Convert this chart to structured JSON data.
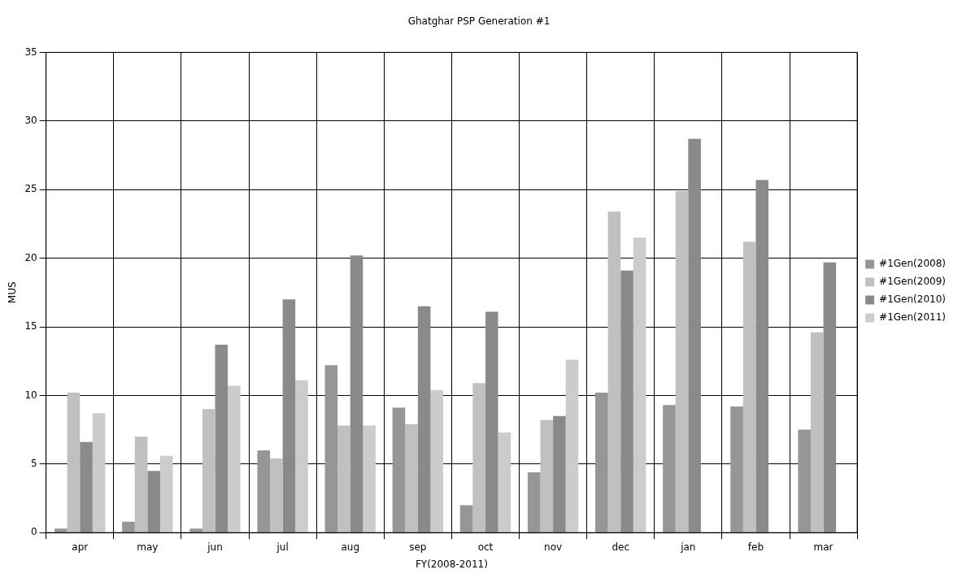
{
  "chart_data": {
    "type": "bar",
    "title": "Ghatghar PSP Generation #1",
    "xlabel": "FY(2008-2011)",
    "ylabel": "MUS",
    "categories": [
      "apr",
      "may",
      "jun",
      "jul",
      "aug",
      "sep",
      "oct",
      "nov",
      "dec",
      "jan",
      "feb",
      "mar"
    ],
    "series": [
      {
        "name": "#1Gen(2008)",
        "color": "#969696",
        "values": [
          0.3,
          0.8,
          0.3,
          6.0,
          12.2,
          9.1,
          2.0,
          4.4,
          10.2,
          9.3,
          9.2,
          7.5
        ]
      },
      {
        "name": "#1Gen(2009)",
        "color": "#c0c0c0",
        "values": [
          10.2,
          7.0,
          9.0,
          5.4,
          7.8,
          7.9,
          10.9,
          8.2,
          23.4,
          24.9,
          21.2,
          14.6
        ]
      },
      {
        "name": "#1Gen(2010)",
        "color": "#8a8a8a",
        "values": [
          6.6,
          4.5,
          13.7,
          17.0,
          20.2,
          16.5,
          16.1,
          8.5,
          19.1,
          28.7,
          25.7,
          19.7
        ]
      },
      {
        "name": "#1Gen(2011)",
        "color": "#cccccc",
        "values": [
          8.7,
          5.6,
          10.7,
          11.1,
          7.8,
          10.4,
          7.3,
          12.6,
          21.5,
          null,
          null,
          null
        ]
      }
    ],
    "ylim": [
      0,
      35
    ],
    "yticks": [
      0,
      5,
      10,
      15,
      20,
      25,
      30,
      35
    ],
    "grid": true,
    "legend": "right"
  }
}
